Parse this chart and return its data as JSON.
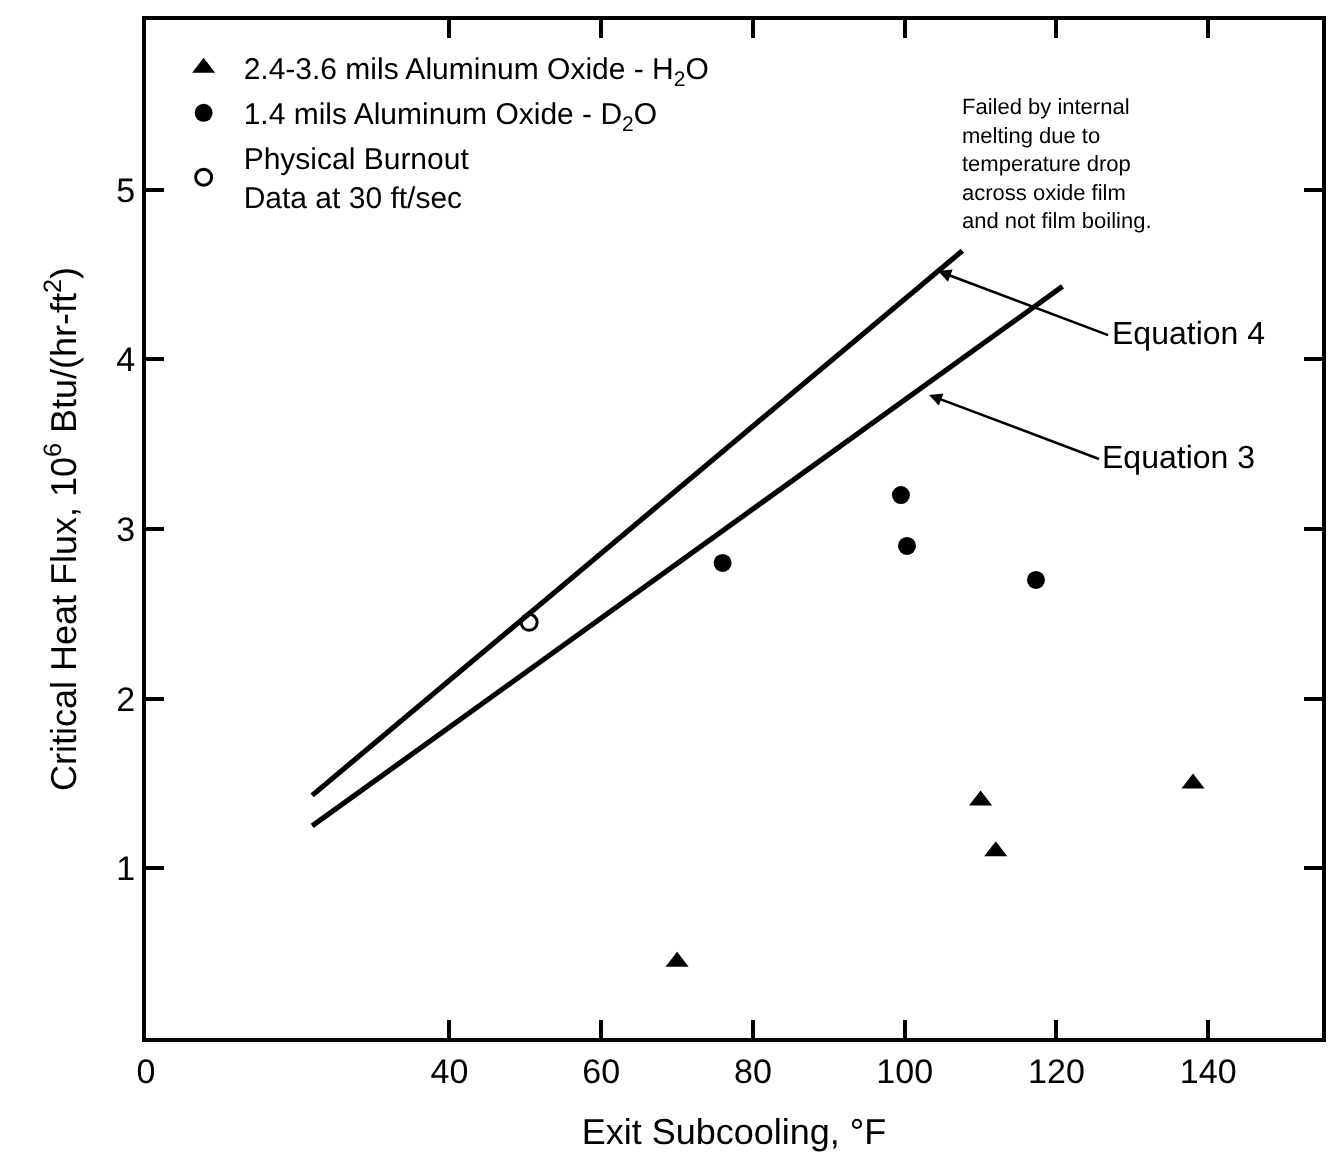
{
  "chart_data": {
    "type": "scatter",
    "xlabel": "Exit Subcooling, °F",
    "ylabel": "Critical Heat Flux, 10$^{6}$ Btu/(hr-ft$^{2}$)",
    "xlim": [
      0,
      155
    ],
    "xticks": [
      0,
      40,
      60,
      80,
      100,
      120,
      140
    ],
    "ylim": [
      0,
      6
    ],
    "yticks": [
      1,
      2,
      3,
      4,
      5
    ],
    "grid": false,
    "legend": "top left",
    "series": [
      {
        "name": "2.4-3.6 mils Aluminum Oxide - H$_{2}$O",
        "marker": "triangle",
        "color": "#000000",
        "x": [
          70,
          110,
          112,
          138
        ],
        "values": [
          0.45,
          1.4,
          1.1,
          1.5
        ]
      },
      {
        "name": "1.4 mils Aluminum Oxide - D$_{2}$O",
        "marker": "circle",
        "color": "#000000",
        "x": [
          76,
          99.5,
          100.3,
          117.3
        ],
        "values": [
          2.8,
          3.2,
          2.9,
          2.7
        ]
      },
      {
        "name": "Physical Burnout\nData at 30 ft/sec",
        "marker": "open circle",
        "color": "#000000",
        "x": [
          50.5
        ],
        "values": [
          2.45
        ]
      },
      {
        "type": "line",
        "marker": "none",
        "line_style": "solid",
        "color": "#000000",
        "x": [
          21.9,
          107.6
        ],
        "values": [
          1.43,
          4.64
        ]
      },
      {
        "type": "line",
        "marker": "none",
        "line_style": "solid",
        "color": "#000000",
        "x": [
          21.9,
          120.8
        ],
        "values": [
          1.25,
          4.43
        ]
      }
    ],
    "annotations": [
      {
        "text": "Equation 4",
        "x": 104.4,
        "y": 4.52
      },
      {
        "text": "Equation 3",
        "x": 103.2,
        "y": 3.79
      },
      "Failed by internal\nmelting due to\ntemperature drop\nacross oxide film\nand not film boiling."
    ]
  }
}
